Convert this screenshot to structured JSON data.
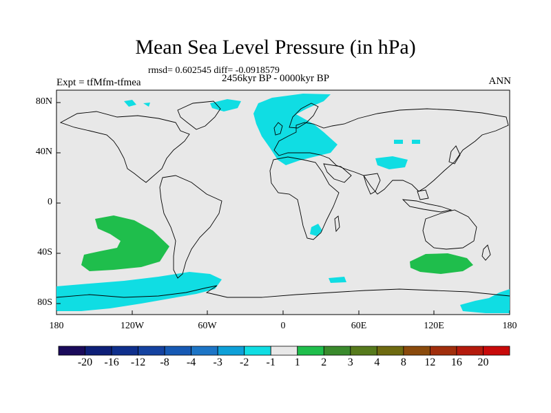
{
  "title": "Mean Sea Level Pressure (in hPa)",
  "stats": "rmsd= 0.602545 diff= -0.0918579",
  "period": "2456kyr BP - 0000kyr BP",
  "experiment": "Expt = tfMfm-tfmea",
  "season": "ANN",
  "y_ticks": [
    "80N",
    "40N",
    "0",
    "40S",
    "80S"
  ],
  "x_ticks": [
    "180",
    "120W",
    "60W",
    "0",
    "60E",
    "120E",
    "180"
  ],
  "colorbar": {
    "labels": [
      "-20",
      "-16",
      "-12",
      "-8",
      "-4",
      "-3",
      "-2",
      "-1",
      "1",
      "2",
      "3",
      "4",
      "8",
      "12",
      "16",
      "20"
    ],
    "colors": [
      "#1a0a5a",
      "#0e1f78",
      "#0f2f8c",
      "#1442a0",
      "#1659b4",
      "#1d75c6",
      "#0ea0d8",
      "#10dde3",
      "#e8e8e8",
      "#1fbe4c",
      "#3a8a2c",
      "#567a1c",
      "#6e6a10",
      "#8a4a0c",
      "#a12e0c",
      "#b41a0c",
      "#c80a0a"
    ]
  },
  "colors": {
    "background": "#e8e8e8",
    "negative_anomaly": "#10dde3",
    "positive_anomaly": "#1fbe4c",
    "coastline": "#000000"
  }
}
